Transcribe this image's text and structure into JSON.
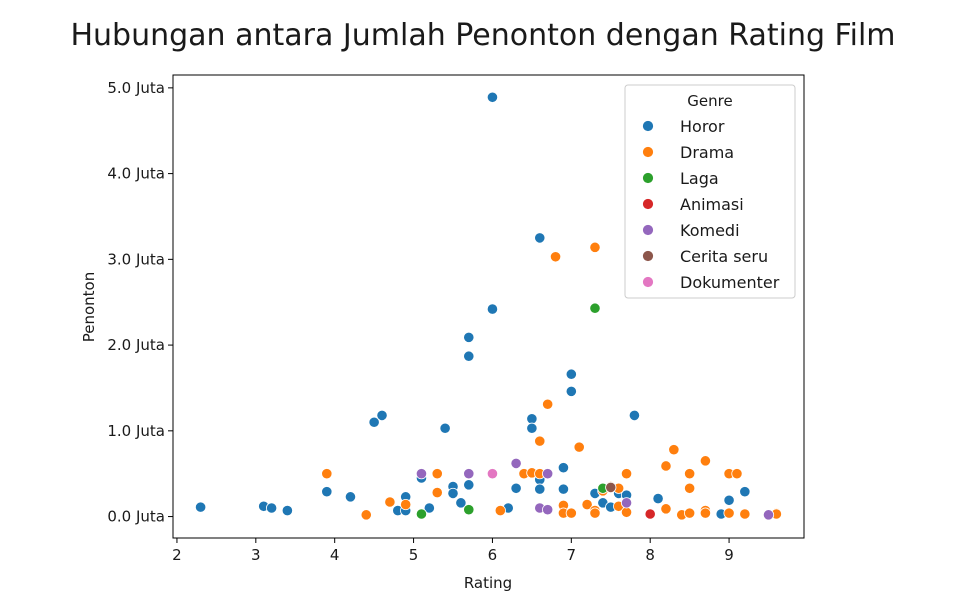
{
  "chart_data": {
    "type": "scatter",
    "title": "Hubungan antara Jumlah Penonton dengan Rating Film",
    "xlabel": "Rating",
    "ylabel": "Penonton",
    "xlim": [
      1.95,
      9.95
    ],
    "ylim": [
      -0.25,
      5.15
    ],
    "x_ticks": [
      2,
      3,
      4,
      5,
      6,
      7,
      8,
      9
    ],
    "x_tick_labels": [
      "2",
      "3",
      "4",
      "5",
      "6",
      "7",
      "8",
      "9"
    ],
    "y_ticks": [
      0,
      1,
      2,
      3,
      4,
      5
    ],
    "y_tick_labels": [
      "0.0 Juta",
      "1.0 Juta",
      "2.0 Juta",
      "3.0 Juta",
      "4.0 Juta",
      "5.0 Juta"
    ],
    "grid": false,
    "legend": {
      "title": "Genre",
      "placement": "top-right"
    },
    "series": [
      {
        "name": "Horor",
        "color": "#1f77b4",
        "points": [
          [
            2.3,
            0.11
          ],
          [
            3.1,
            0.12
          ],
          [
            3.2,
            0.1
          ],
          [
            3.4,
            0.07
          ],
          [
            3.9,
            0.29
          ],
          [
            4.2,
            0.23
          ],
          [
            4.5,
            1.1
          ],
          [
            4.6,
            1.18
          ],
          [
            4.8,
            0.07
          ],
          [
            4.9,
            0.07
          ],
          [
            4.9,
            0.23
          ],
          [
            5.1,
            0.45
          ],
          [
            5.2,
            0.1
          ],
          [
            5.4,
            1.03
          ],
          [
            5.5,
            0.35
          ],
          [
            5.5,
            0.27
          ],
          [
            5.6,
            0.16
          ],
          [
            5.7,
            0.37
          ],
          [
            5.7,
            1.87
          ],
          [
            5.7,
            2.09
          ],
          [
            6.0,
            4.89
          ],
          [
            6.0,
            2.42
          ],
          [
            6.2,
            0.1
          ],
          [
            6.3,
            0.33
          ],
          [
            6.5,
            1.14
          ],
          [
            6.5,
            1.03
          ],
          [
            6.6,
            3.25
          ],
          [
            6.6,
            0.43
          ],
          [
            6.6,
            0.32
          ],
          [
            6.9,
            0.57
          ],
          [
            6.9,
            0.32
          ],
          [
            7.0,
            1.66
          ],
          [
            7.0,
            1.46
          ],
          [
            7.3,
            0.27
          ],
          [
            7.4,
            0.16
          ],
          [
            7.5,
            0.11
          ],
          [
            7.6,
            0.27
          ],
          [
            7.7,
            0.25
          ],
          [
            7.8,
            1.18
          ],
          [
            8.1,
            0.21
          ],
          [
            8.9,
            0.03
          ],
          [
            9.0,
            0.19
          ],
          [
            9.2,
            0.29
          ]
        ]
      },
      {
        "name": "Drama",
        "color": "#ff7f0e",
        "points": [
          [
            3.9,
            0.5
          ],
          [
            4.4,
            0.02
          ],
          [
            4.7,
            0.17
          ],
          [
            4.9,
            0.14
          ],
          [
            5.3,
            0.5
          ],
          [
            5.3,
            0.28
          ],
          [
            6.1,
            0.07
          ],
          [
            6.4,
            0.5
          ],
          [
            6.5,
            0.51
          ],
          [
            6.6,
            0.88
          ],
          [
            6.6,
            0.5
          ],
          [
            6.7,
            1.31
          ],
          [
            6.8,
            3.03
          ],
          [
            6.9,
            0.13
          ],
          [
            6.9,
            0.04
          ],
          [
            7.0,
            0.04
          ],
          [
            7.1,
            0.81
          ],
          [
            7.2,
            0.14
          ],
          [
            7.3,
            3.14
          ],
          [
            7.3,
            0.07
          ],
          [
            7.3,
            0.04
          ],
          [
            7.4,
            0.3
          ],
          [
            7.5,
            0.35
          ],
          [
            7.6,
            0.33
          ],
          [
            7.6,
            0.12
          ],
          [
            7.7,
            0.5
          ],
          [
            7.7,
            0.05
          ],
          [
            8.2,
            0.59
          ],
          [
            8.2,
            0.09
          ],
          [
            8.3,
            0.78
          ],
          [
            8.4,
            0.02
          ],
          [
            8.5,
            0.5
          ],
          [
            8.5,
            0.33
          ],
          [
            8.5,
            0.04
          ],
          [
            8.7,
            0.65
          ],
          [
            8.7,
            0.07
          ],
          [
            8.7,
            0.04
          ],
          [
            9.0,
            0.5
          ],
          [
            9.0,
            0.04
          ],
          [
            9.1,
            0.5
          ],
          [
            9.2,
            0.03
          ],
          [
            9.6,
            0.04
          ],
          [
            9.6,
            0.03
          ]
        ]
      },
      {
        "name": "Laga",
        "color": "#2ca02c",
        "points": [
          [
            5.1,
            0.03
          ],
          [
            5.7,
            0.08
          ],
          [
            7.3,
            2.43
          ],
          [
            7.4,
            0.33
          ]
        ]
      },
      {
        "name": "Animasi",
        "color": "#d62728",
        "points": [
          [
            8.0,
            0.03
          ]
        ]
      },
      {
        "name": "Komedi",
        "color": "#9467bd",
        "points": [
          [
            5.1,
            0.5
          ],
          [
            5.7,
            0.5
          ],
          [
            6.3,
            0.62
          ],
          [
            6.6,
            0.1
          ],
          [
            6.7,
            0.5
          ],
          [
            6.7,
            0.08
          ],
          [
            7.7,
            0.16
          ],
          [
            9.5,
            0.02
          ]
        ]
      },
      {
        "name": "Cerita seru",
        "color": "#8c564b",
        "points": [
          [
            7.5,
            0.34
          ]
        ]
      },
      {
        "name": "Dokumenter",
        "color": "#e377c2",
        "points": [
          [
            6.0,
            0.5
          ]
        ]
      }
    ]
  }
}
